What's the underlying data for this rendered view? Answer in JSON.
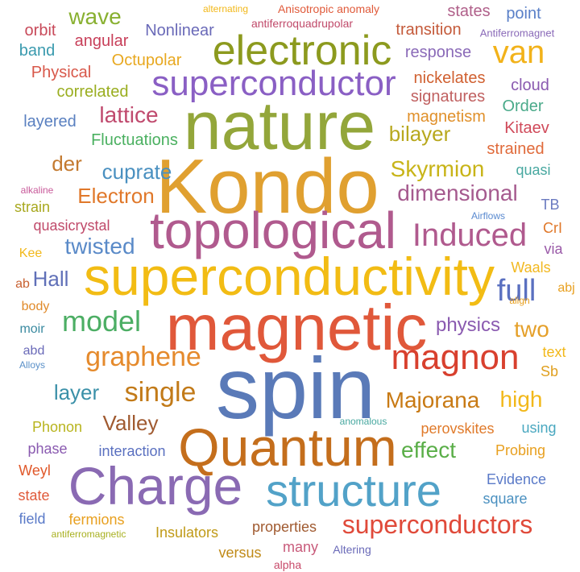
{
  "words": [
    {
      "text": "spin",
      "color": "#5a7ab8"
    },
    {
      "text": "Kondo",
      "color": "#e0a030"
    },
    {
      "text": "nature",
      "color": "#93a63a"
    },
    {
      "text": "magnetic",
      "color": "#e0583a"
    },
    {
      "text": "superconductivity",
      "color": "#f2bc14"
    },
    {
      "text": "topological",
      "color": "#b05a8e"
    },
    {
      "text": "Quantum",
      "color": "#c46e1c"
    },
    {
      "text": "Charge",
      "color": "#8a6ab3"
    },
    {
      "text": "structure",
      "color": "#52a2c8"
    },
    {
      "text": "electronic",
      "color": "#8c9a1e"
    },
    {
      "text": "superconductor",
      "color": "#8a5fc4"
    },
    {
      "text": "magnon",
      "color": "#d8402e"
    },
    {
      "text": "Induced",
      "color": "#b05a8e"
    },
    {
      "text": "superconductors",
      "color": "#e04a3a"
    },
    {
      "text": "graphene",
      "color": "#e58a2c"
    },
    {
      "text": "single",
      "color": "#c27a18"
    },
    {
      "text": "model",
      "color": "#4cae64"
    },
    {
      "text": "van",
      "color": "#f2b21a"
    },
    {
      "text": "full",
      "color": "#5a70c0"
    },
    {
      "text": "dimensional",
      "color": "#a55a8e"
    },
    {
      "text": "Skyrmion",
      "color": "#c8b418"
    },
    {
      "text": "Majorana",
      "color": "#c87a14"
    },
    {
      "text": "effect",
      "color": "#5aae48"
    },
    {
      "text": "lattice",
      "color": "#c04a6e"
    },
    {
      "text": "twisted",
      "color": "#5a8ac8"
    },
    {
      "text": "wave",
      "color": "#88b030"
    },
    {
      "text": "Electron",
      "color": "#e0782a"
    },
    {
      "text": "cuprate",
      "color": "#4a90c0"
    },
    {
      "text": "Valley",
      "color": "#a05a30"
    },
    {
      "text": "bilayer",
      "color": "#b8a81e"
    },
    {
      "text": "layer",
      "color": "#3a90a8"
    },
    {
      "text": "Hall",
      "color": "#6070b8"
    },
    {
      "text": "physics",
      "color": "#8a5ab0"
    },
    {
      "text": "two",
      "color": "#e5a02a"
    },
    {
      "text": "high",
      "color": "#f2b81a"
    },
    {
      "text": "der",
      "color": "#c47a30"
    },
    {
      "text": "transition",
      "color": "#c45a3a"
    },
    {
      "text": "Nonlinear",
      "color": "#6a6ab8"
    },
    {
      "text": "angular",
      "color": "#c8405a"
    },
    {
      "text": "Octupolar",
      "color": "#e8a820"
    },
    {
      "text": "correlated",
      "color": "#9aae20"
    },
    {
      "text": "Physical",
      "color": "#d8584a"
    },
    {
      "text": "orbit",
      "color": "#c84a5a"
    },
    {
      "text": "band",
      "color": "#3a9aae"
    },
    {
      "text": "layered",
      "color": "#5a80c0"
    },
    {
      "text": "Fluctuations",
      "color": "#4ab060"
    },
    {
      "text": "states",
      "color": "#b0608a"
    },
    {
      "text": "point",
      "color": "#5a80c8"
    },
    {
      "text": "response",
      "color": "#8a6ab8"
    },
    {
      "text": "nickelates",
      "color": "#d06030"
    },
    {
      "text": "signatures",
      "color": "#c06060"
    },
    {
      "text": "cloud",
      "color": "#8a5ab0"
    },
    {
      "text": "Order",
      "color": "#4aaa8a"
    },
    {
      "text": "magnetism",
      "color": "#e0902a"
    },
    {
      "text": "Kitaev",
      "color": "#d04a5a"
    },
    {
      "text": "strained",
      "color": "#e06a3a"
    },
    {
      "text": "quasi",
      "color": "#48a8a0"
    },
    {
      "text": "TB",
      "color": "#6a7ac0"
    },
    {
      "text": "CrI",
      "color": "#e0782a"
    },
    {
      "text": "via",
      "color": "#9a5aa8"
    },
    {
      "text": "Waals",
      "color": "#f2b820"
    },
    {
      "text": "abj",
      "color": "#e8a020"
    },
    {
      "text": "text",
      "color": "#f2b81a"
    },
    {
      "text": "Sb",
      "color": "#e0a020"
    },
    {
      "text": "using",
      "color": "#4aa8c0"
    },
    {
      "text": "Probing",
      "color": "#e8a020"
    },
    {
      "text": "perovskites",
      "color": "#e07a2a"
    },
    {
      "text": "Evidence",
      "color": "#5a7ac8"
    },
    {
      "text": "square",
      "color": "#4a90c0"
    },
    {
      "text": "properties",
      "color": "#a05a30"
    },
    {
      "text": "many",
      "color": "#c85a7a"
    },
    {
      "text": "versus",
      "color": "#c08a18"
    },
    {
      "text": "alpha",
      "color": "#c84a6a"
    },
    {
      "text": "Altering",
      "color": "#6a6ab8"
    },
    {
      "text": "Insulators",
      "color": "#c09a18"
    },
    {
      "text": "fermions",
      "color": "#e8a020"
    },
    {
      "text": "field",
      "color": "#5a7ac8"
    },
    {
      "text": "state",
      "color": "#e05a3a"
    },
    {
      "text": "Weyl",
      "color": "#e0582a"
    },
    {
      "text": "phase",
      "color": "#8a5ab0"
    },
    {
      "text": "Phonon",
      "color": "#b8b41e"
    },
    {
      "text": "interaction",
      "color": "#5a70c0"
    },
    {
      "text": "anomalous",
      "color": "#48a8a0"
    },
    {
      "text": "antiferromagnetic",
      "color": "#a8b020"
    },
    {
      "text": "Alloys",
      "color": "#5a90c8"
    },
    {
      "text": "abd",
      "color": "#6a6ab8"
    },
    {
      "text": "moir",
      "color": "#3a8aa0"
    },
    {
      "text": "body",
      "color": "#e08a2a"
    },
    {
      "text": "ab",
      "color": "#c86030"
    },
    {
      "text": "Kee",
      "color": "#f2b81a"
    },
    {
      "text": "quasicrystal",
      "color": "#c04a6a"
    },
    {
      "text": "strain",
      "color": "#a8a81e"
    },
    {
      "text": "alkaline",
      "color": "#c85a9a"
    },
    {
      "text": "Airflows",
      "color": "#5a8ad0"
    },
    {
      "text": "align",
      "color": "#e8a020"
    },
    {
      "text": "alternating",
      "color": "#f2b81a"
    },
    {
      "text": "Anisotropic anomaly",
      "color": "#e05a3a"
    },
    {
      "text": "antiferroquadrupolar",
      "color": "#c04a6a"
    },
    {
      "text": "Antiferromagnet",
      "color": "#8a6ab8"
    }
  ]
}
